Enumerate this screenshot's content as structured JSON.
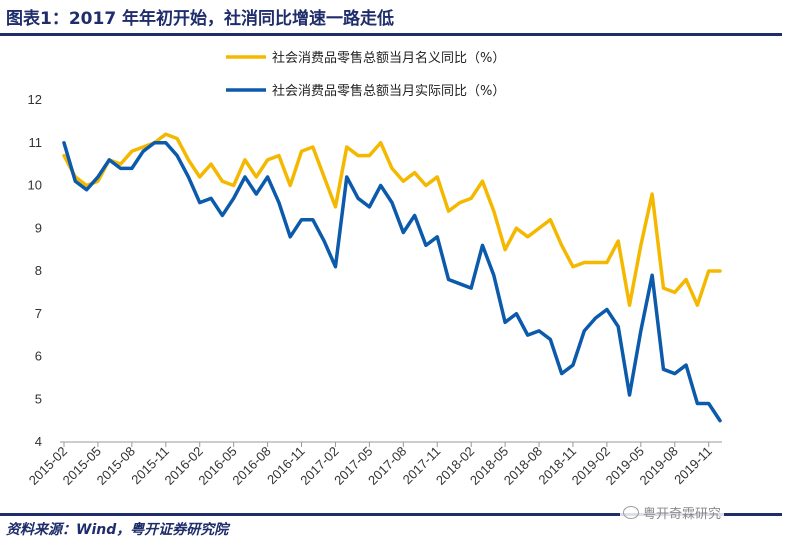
{
  "header": {
    "title": "图表1：2017 年年初开始，社消同比增速一路走低"
  },
  "footer": {
    "source": "资料来源：Wind，粤开证券研究院",
    "watermark": "粤开奇霖研究"
  },
  "colors": {
    "nominal": "#F5B800",
    "real": "#0B5AAB",
    "title": "#1F2D6B"
  },
  "chart_data": {
    "type": "line",
    "ylim": [
      4,
      12
    ],
    "yticks": [
      "4",
      "5",
      "6",
      "7",
      "8",
      "9",
      "10",
      "11",
      "12"
    ],
    "x_tick_labels": [
      "2015-02",
      "2015-05",
      "2015-08",
      "2015-11",
      "2016-02",
      "2016-05",
      "2016-08",
      "2016-11",
      "2017-02",
      "2017-05",
      "2017-08",
      "2017-11",
      "2018-02",
      "2018-05",
      "2018-08",
      "2018-11",
      "2019-02",
      "2019-05",
      "2019-08",
      "2019-11"
    ],
    "legend_position": "top",
    "grid": false,
    "series": [
      {
        "name": "社会消费品零售总额当月名义同比（%）",
        "values": [
          10.7,
          10.2,
          10.0,
          10.1,
          10.6,
          10.5,
          10.8,
          10.9,
          11.0,
          11.2,
          11.1,
          10.6,
          10.2,
          10.5,
          10.1,
          10.0,
          10.6,
          10.2,
          10.6,
          10.7,
          10.0,
          10.8,
          10.9,
          10.2,
          9.5,
          10.9,
          10.7,
          10.7,
          11.0,
          10.4,
          10.1,
          10.3,
          10.0,
          10.2,
          9.4,
          9.6,
          9.7,
          10.1,
          9.4,
          8.5,
          9.0,
          8.8,
          9.0,
          9.2,
          8.6,
          8.1,
          8.2,
          8.2,
          8.2,
          8.7,
          7.2,
          8.6,
          9.8,
          7.6,
          7.5,
          7.8,
          7.2,
          8.0,
          8.0
        ],
        "color": "#F5B800"
      },
      {
        "name": "社会消费品零售总额当月实际同比（%）",
        "values": [
          11.0,
          10.1,
          9.9,
          10.2,
          10.6,
          10.4,
          10.4,
          10.8,
          11.0,
          11.0,
          10.7,
          10.2,
          9.6,
          9.7,
          9.3,
          9.7,
          10.2,
          9.8,
          10.2,
          9.6,
          8.8,
          9.2,
          9.2,
          8.7,
          8.1,
          10.2,
          9.7,
          9.5,
          10.0,
          9.6,
          8.9,
          9.3,
          8.6,
          8.8,
          7.8,
          7.7,
          7.6,
          8.6,
          7.9,
          6.8,
          7.0,
          6.5,
          6.6,
          6.4,
          5.6,
          5.8,
          6.6,
          6.9,
          7.1,
          6.7,
          5.1,
          6.6,
          7.9,
          5.7,
          5.6,
          5.8,
          4.9,
          4.9,
          4.5
        ],
        "color": "#0B5AAB"
      }
    ]
  }
}
